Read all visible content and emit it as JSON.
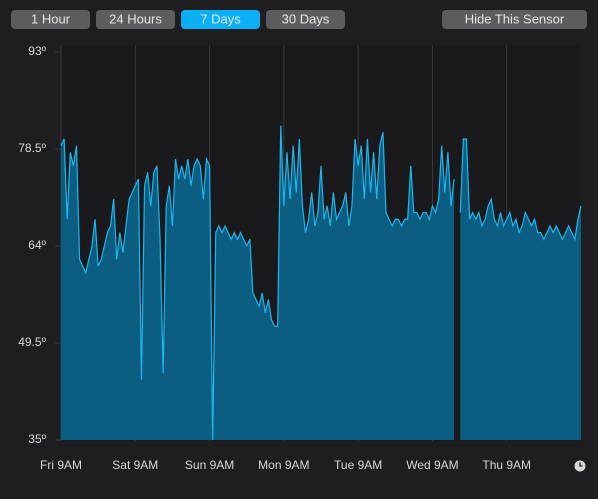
{
  "buttons": [
    {
      "label": "1 Hour",
      "active": false
    },
    {
      "label": "24 Hours",
      "active": false
    },
    {
      "label": "7 Days",
      "active": true
    },
    {
      "label": "30 Days",
      "active": false
    }
  ],
  "action_button": "Hide This Sensor",
  "chart_data": {
    "type": "area",
    "x": [
      0,
      1,
      2,
      3,
      4,
      5,
      6,
      7,
      8,
      9,
      10,
      11,
      12,
      13,
      14,
      15,
      16,
      17,
      18,
      19,
      20,
      21,
      22,
      23,
      24,
      25,
      26,
      27,
      28,
      29,
      30,
      31,
      32,
      33,
      34,
      35,
      36,
      37,
      38,
      39,
      40,
      41,
      42,
      43,
      44,
      45,
      46,
      47,
      48,
      49,
      50,
      51,
      52,
      53,
      54,
      55,
      56,
      57,
      58,
      59,
      60,
      61,
      62,
      63,
      64,
      65,
      66,
      67,
      68,
      69,
      70,
      71,
      72,
      73,
      74,
      75,
      76,
      77,
      78,
      79,
      80,
      81,
      82,
      83,
      84,
      85,
      86,
      87,
      88,
      89,
      90,
      91,
      92,
      93,
      94,
      95,
      96,
      97,
      98,
      99,
      100,
      101,
      102,
      103,
      104,
      105,
      106,
      107,
      108,
      109,
      110,
      111,
      112,
      113,
      114,
      115,
      116,
      117,
      118,
      119,
      120,
      121,
      122,
      123,
      124,
      125,
      126,
      127,
      128,
      129,
      130,
      131,
      132,
      133,
      134,
      135,
      136,
      137,
      138,
      139,
      140,
      141,
      142,
      143,
      144,
      145,
      146,
      147,
      148,
      149,
      150,
      151,
      152,
      153,
      154,
      155,
      156,
      157,
      158,
      159,
      160,
      161,
      162,
      163,
      164,
      165,
      166,
      167,
      168
    ],
    "series": [
      {
        "color": "#1fb6ee",
        "fill": "#0b5d82",
        "values": [
          79,
          80,
          68,
          78,
          76,
          79,
          62,
          61,
          60,
          62,
          64,
          68,
          61,
          62,
          64,
          66,
          67,
          71,
          62,
          66,
          63,
          67,
          71,
          72,
          73,
          74,
          44,
          73,
          75,
          70,
          75,
          76,
          65,
          45,
          70,
          73,
          67,
          77,
          74,
          76,
          74,
          77,
          73,
          76,
          77,
          76,
          71,
          77,
          76,
          35,
          66,
          67,
          66,
          67,
          66,
          65,
          66,
          65,
          66,
          65,
          64,
          65,
          57,
          56,
          55,
          57,
          54,
          56,
          53,
          52,
          52,
          82,
          70,
          78,
          71,
          79,
          72,
          80,
          70,
          66,
          68,
          72,
          67,
          69,
          76,
          68,
          70,
          67,
          72,
          68,
          69,
          70,
          72,
          67,
          70,
          80,
          76,
          79,
          71,
          80,
          72,
          78,
          71,
          79,
          81,
          69,
          68,
          67,
          68,
          68,
          67,
          68,
          68,
          76,
          69,
          69,
          68,
          69,
          69,
          68,
          70,
          69,
          71,
          79,
          72,
          78,
          70,
          74,
          null,
          69,
          80,
          80,
          68,
          69,
          68,
          69,
          67,
          68,
          70,
          71,
          68,
          67,
          69,
          67,
          68,
          69,
          67,
          68,
          66,
          67,
          69,
          68,
          67,
          68,
          66,
          66,
          65,
          66,
          67,
          66,
          67,
          66,
          65,
          66,
          67,
          66,
          65,
          68,
          70
        ]
      }
    ],
    "xlim": [
      0,
      168
    ],
    "xticks": [
      {
        "value": 0,
        "label": "Fri 9AM"
      },
      {
        "value": 24,
        "label": "Sat 9AM"
      },
      {
        "value": 48,
        "label": "Sun 9AM"
      },
      {
        "value": 72,
        "label": "Mon 9AM"
      },
      {
        "value": 96,
        "label": "Tue 9AM"
      },
      {
        "value": 120,
        "label": "Wed 9AM"
      },
      {
        "value": 144,
        "label": "Thu 9AM"
      }
    ],
    "ylim": [
      35,
      93
    ],
    "yticks": [
      {
        "value": 93,
        "label": "93º"
      },
      {
        "value": 78.5,
        "label": "78.5º"
      },
      {
        "value": 64,
        "label": "64º"
      },
      {
        "value": 49.5,
        "label": "49.5º"
      },
      {
        "value": 35,
        "label": "35º"
      }
    ],
    "grid": "x"
  }
}
